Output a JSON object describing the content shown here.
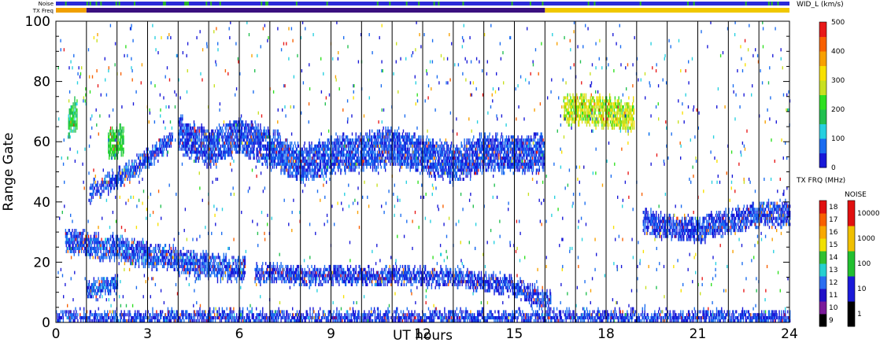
{
  "chart_data": {
    "type": "heatmap",
    "xlabel": "UT hours",
    "ylabel": "Range Gate",
    "xlim": [
      0,
      24
    ],
    "ylim": [
      0,
      100
    ],
    "x_ticks": [
      0,
      3,
      6,
      9,
      12,
      15,
      18,
      21,
      24
    ],
    "y_ticks": [
      0,
      20,
      40,
      60,
      80,
      100
    ],
    "hour_lines": [
      1,
      2,
      3,
      4,
      5,
      6,
      7,
      8,
      9,
      10,
      11,
      12,
      13,
      14,
      15,
      16,
      17,
      18,
      19,
      20,
      21,
      22,
      23
    ],
    "top_bars": [
      {
        "label": "Noise",
        "base_color": "#2a2ad8",
        "accent_color": "#28b428",
        "accent_fraction": 0.08
      },
      {
        "label": "TX Freq",
        "segments": [
          {
            "from": 0,
            "to": 1,
            "color": "#f0a000"
          },
          {
            "from": 1,
            "to": 16,
            "color": "#3a1080"
          },
          {
            "from": 16,
            "to": 24,
            "color": "#f0c800"
          }
        ]
      }
    ],
    "width_scale": {
      "label": "WID_L (km/s)",
      "range": [
        0,
        500
      ],
      "ticks": [
        0,
        100,
        200,
        300,
        400,
        500
      ],
      "colors": [
        "#1818d8",
        "#1a6cf0",
        "#26d0e0",
        "#22c050",
        "#2ee020",
        "#c8e020",
        "#f8e000",
        "#f8a000",
        "#f86000",
        "#e81818"
      ]
    },
    "tx_freq_scale": {
      "label": "TX FRQ (MHz)",
      "ticks": [
        "9",
        "10",
        "11",
        "12",
        "13",
        "14",
        "15",
        "16",
        "17",
        "18"
      ],
      "colors": [
        "#000000",
        "#7a1a9a",
        "#2010c8",
        "#2a6ef0",
        "#26d0d0",
        "#30c030",
        "#f0e000",
        "#f8a800",
        "#f86000",
        "#e01010"
      ]
    },
    "noise_scale": {
      "label": "NOISE",
      "ticks": [
        "1",
        "10",
        "100",
        "1000",
        "10000"
      ],
      "colors": [
        "#000000",
        "#1a1ad8",
        "#22c030",
        "#f0c000",
        "#e01010"
      ]
    },
    "echo_bands": [
      {
        "t0": 4.0,
        "t1": 16.0,
        "center": [
          [
            4,
            62
          ],
          [
            5,
            57
          ],
          [
            6,
            62
          ],
          [
            7,
            57
          ],
          [
            8,
            52
          ],
          [
            9,
            55
          ],
          [
            10,
            56
          ],
          [
            11,
            58
          ],
          [
            12,
            55
          ],
          [
            13,
            52
          ],
          [
            14,
            56
          ],
          [
            15,
            55
          ],
          [
            16,
            56
          ]
        ],
        "thickness": 9,
        "value": 40
      },
      {
        "t0": 0.3,
        "t1": 6.2,
        "center": [
          [
            0.3,
            27
          ],
          [
            1,
            25
          ],
          [
            2,
            24
          ],
          [
            3,
            22
          ],
          [
            4,
            20
          ],
          [
            5,
            18
          ],
          [
            6,
            17
          ]
        ],
        "thickness": 5,
        "value": 45
      },
      {
        "t0": 6.5,
        "t1": 16.2,
        "center": [
          [
            6.5,
            16
          ],
          [
            8,
            15
          ],
          [
            10,
            15
          ],
          [
            12,
            15
          ],
          [
            13,
            14
          ],
          [
            14,
            13
          ],
          [
            15,
            11
          ],
          [
            16,
            7
          ]
        ],
        "thickness": 3,
        "value": 30
      },
      {
        "t0": 1.0,
        "t1": 2.0,
        "center": [
          [
            1.0,
            10
          ],
          [
            1.5,
            11
          ],
          [
            2.0,
            12
          ]
        ],
        "thickness": 3,
        "value": 55
      },
      {
        "t0": 0.0,
        "t1": 24.0,
        "center": [
          [
            0,
            1
          ],
          [
            24,
            1
          ]
        ],
        "thickness": 1.5,
        "value": 30
      },
      {
        "t0": 19.2,
        "t1": 24.0,
        "center": [
          [
            19.2,
            33
          ],
          [
            20,
            31
          ],
          [
            21,
            30
          ],
          [
            22,
            33
          ],
          [
            23,
            35
          ],
          [
            24,
            36
          ]
        ],
        "thickness": 5,
        "value": 35
      },
      {
        "t0": 16.6,
        "t1": 18.9,
        "center": [
          [
            16.6,
            70
          ],
          [
            17.5,
            70
          ],
          [
            18.9,
            68
          ]
        ],
        "thickness": 7,
        "value": 260
      },
      {
        "t0": 1.7,
        "t1": 2.2,
        "center": [
          [
            1.7,
            58
          ],
          [
            2.2,
            60
          ]
        ],
        "thickness": 7,
        "value": 190
      },
      {
        "t0": 0.4,
        "t1": 0.7,
        "center": [
          [
            0.4,
            65
          ],
          [
            0.7,
            70
          ]
        ],
        "thickness": 8,
        "value": 170
      },
      {
        "t0": 1.1,
        "t1": 3.8,
        "center": [
          [
            1.1,
            43
          ],
          [
            2,
            47
          ],
          [
            3,
            54
          ],
          [
            3.8,
            60
          ]
        ],
        "thickness": 3,
        "value": 45
      }
    ],
    "grid": false,
    "legend": "right"
  }
}
